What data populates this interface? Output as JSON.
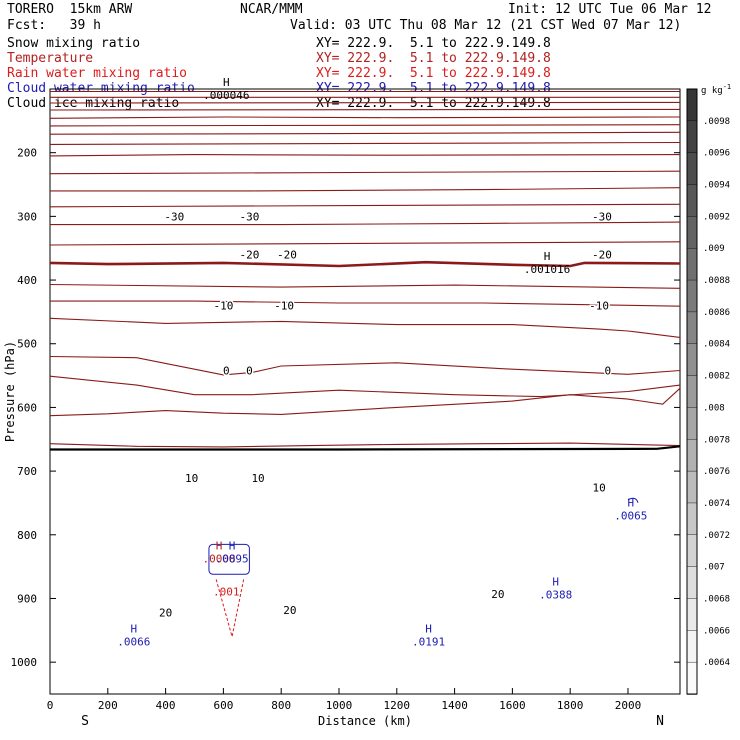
{
  "header": {
    "model": "TORERO  15km ARW",
    "org": "NCAR/MMM",
    "init": "Init: 12 UTC Tue 06 Mar 12",
    "fcst": "Fcst:   39 h",
    "valid": "Valid: 03 UTC Thu 08 Mar 12 (21 CST Wed 07 Mar 12)",
    "fields": [
      {
        "name": "Snow mixing ratio",
        "xy": "XY= 222.9.  5.1 to 222.9.149.8",
        "color": "#000000"
      },
      {
        "name": "Temperature",
        "xy": "XY= 222.9.  5.1 to 222.9.149.8",
        "color": "#b22222"
      },
      {
        "name": "Rain water mixing ratio",
        "xy": "XY= 222.9.  5.1 to 222.9.149.8",
        "color": "#dd1c1c"
      },
      {
        "name": "Cloud water mixing ratio",
        "xy": "XY= 222.9.  5.1 to 222.9.149.8",
        "color": "#1c1cb4"
      },
      {
        "name": "Cloud ice mixing ratio",
        "xy": "XY= 222.9.  5.1 to 222.9.149.8",
        "color": "#000000"
      }
    ]
  },
  "chart_data": {
    "type": "line",
    "title": "",
    "xlabel": "Distance (km)",
    "ylabel": "Pressure (hPa)",
    "xlim": [
      0,
      2180
    ],
    "ylim": [
      1050,
      100
    ],
    "x_ticks": [
      0,
      200,
      400,
      600,
      800,
      1000,
      1200,
      1400,
      1600,
      1800,
      2000
    ],
    "y_ticks": [
      200,
      300,
      400,
      500,
      600,
      700,
      800,
      900,
      1000
    ],
    "end_labels": {
      "left": "S",
      "right": "N"
    },
    "temperature_contours": [
      {
        "level": null,
        "points": [
          [
            0,
            104
          ],
          [
            2180,
            104
          ]
        ]
      },
      {
        "level": null,
        "points": [
          [
            0,
            113
          ],
          [
            2180,
            113
          ]
        ]
      },
      {
        "level": null,
        "points": [
          [
            0,
            122
          ],
          [
            2180,
            121
          ]
        ]
      },
      {
        "level": null,
        "points": [
          [
            0,
            133
          ],
          [
            2180,
            132
          ]
        ]
      },
      {
        "level": null,
        "points": [
          [
            0,
            146
          ],
          [
            600,
            144
          ],
          [
            1200,
            145
          ],
          [
            2180,
            144
          ]
        ]
      },
      {
        "level": null,
        "points": [
          [
            0,
            158
          ],
          [
            2180,
            156
          ]
        ]
      },
      {
        "level": null,
        "points": [
          [
            0,
            171
          ],
          [
            1000,
            170
          ],
          [
            2180,
            168
          ]
        ]
      },
      {
        "level": null,
        "points": [
          [
            0,
            187
          ],
          [
            2180,
            184
          ]
        ]
      },
      {
        "level": -30,
        "points": [
          [
            0,
            205
          ],
          [
            500,
            203
          ],
          [
            1200,
            204
          ],
          [
            2180,
            203
          ]
        ]
      },
      {
        "level": null,
        "points": [
          [
            0,
            233
          ],
          [
            2180,
            229
          ]
        ]
      },
      {
        "level": -20,
        "points": [
          [
            0,
            260
          ],
          [
            700,
            260
          ],
          [
            1500,
            258
          ],
          [
            2180,
            255
          ]
        ]
      },
      {
        "level": null,
        "points": [
          [
            0,
            285
          ],
          [
            2180,
            281
          ]
        ]
      },
      {
        "level": -10,
        "points": [
          [
            0,
            313
          ],
          [
            800,
            313
          ],
          [
            1500,
            311
          ],
          [
            2180,
            309
          ]
        ]
      },
      {
        "level": null,
        "points": [
          [
            0,
            345
          ],
          [
            2180,
            340
          ]
        ]
      },
      {
        "level": 0,
        "bold": true,
        "points": [
          [
            0,
            373
          ],
          [
            200,
            375
          ],
          [
            600,
            373
          ],
          [
            1000,
            378
          ],
          [
            1300,
            372
          ],
          [
            1600,
            376
          ],
          [
            1800,
            378
          ],
          [
            1850,
            373
          ],
          [
            2180,
            374
          ]
        ]
      },
      {
        "level": null,
        "points": [
          [
            0,
            407
          ],
          [
            800,
            411
          ],
          [
            1400,
            408
          ],
          [
            2180,
            413
          ]
        ]
      },
      {
        "level": null,
        "points": [
          [
            0,
            433
          ],
          [
            500,
            433
          ],
          [
            1000,
            436
          ],
          [
            1500,
            436
          ],
          [
            2180,
            441
          ]
        ]
      },
      {
        "level": 10,
        "points": [
          [
            0,
            460
          ],
          [
            400,
            468
          ],
          [
            800,
            465
          ],
          [
            1200,
            470
          ],
          [
            1600,
            470
          ],
          [
            1900,
            477
          ],
          [
            2000,
            480
          ],
          [
            2180,
            490
          ]
        ]
      },
      {
        "level": null,
        "points": [
          [
            0,
            520
          ],
          [
            300,
            522
          ],
          [
            500,
            540
          ],
          [
            600,
            549
          ],
          [
            700,
            545
          ],
          [
            800,
            535
          ],
          [
            1200,
            530
          ],
          [
            1600,
            540
          ],
          [
            2000,
            548
          ],
          [
            2180,
            542
          ]
        ]
      },
      {
        "level": null,
        "points": [
          [
            0,
            551
          ],
          [
            300,
            565
          ],
          [
            500,
            580
          ],
          [
            700,
            580
          ],
          [
            1000,
            573
          ],
          [
            1400,
            580
          ],
          [
            1700,
            583
          ],
          [
            2000,
            575
          ],
          [
            2180,
            565
          ]
        ]
      },
      {
        "level": 20,
        "points": [
          [
            0,
            613
          ],
          [
            200,
            610
          ],
          [
            400,
            605
          ],
          [
            600,
            609
          ],
          [
            800,
            611
          ],
          [
            1200,
            600
          ],
          [
            1600,
            590
          ],
          [
            1800,
            580
          ],
          [
            2000,
            587
          ],
          [
            2120,
            595
          ],
          [
            2180,
            570
          ]
        ]
      },
      {
        "level": null,
        "points": [
          [
            0,
            657
          ],
          [
            300,
            661
          ],
          [
            600,
            662
          ],
          [
            900,
            660
          ],
          [
            1200,
            658
          ],
          [
            1500,
            657
          ],
          [
            1800,
            656
          ],
          [
            2180,
            660
          ]
        ]
      }
    ],
    "surface": {
      "points": [
        [
          0,
          666
        ],
        [
          1000,
          666
        ],
        [
          2100,
          665
        ],
        [
          2180,
          661
        ]
      ]
    },
    "contour_labels": [
      {
        "x": 430,
        "p": 300,
        "text": "-30"
      },
      {
        "x": 690,
        "p": 300,
        "text": "-30"
      },
      {
        "x": 1910,
        "p": 300,
        "text": "-30"
      },
      {
        "x": 690,
        "p": 360,
        "text": "-20"
      },
      {
        "x": 820,
        "p": 360,
        "text": "-20"
      },
      {
        "x": 1910,
        "p": 360,
        "text": "-20"
      },
      {
        "x": 600,
        "p": 440,
        "text": "-10"
      },
      {
        "x": 810,
        "p": 440,
        "text": "-10"
      },
      {
        "x": 1900,
        "p": 440,
        "text": "-10"
      },
      {
        "x": 610,
        "p": 542,
        "text": "0"
      },
      {
        "x": 690,
        "p": 542,
        "text": "0"
      },
      {
        "x": 1930,
        "p": 542,
        "text": "0"
      },
      {
        "x": 490,
        "p": 711,
        "text": "10"
      },
      {
        "x": 720,
        "p": 711,
        "text": "10"
      },
      {
        "x": 1900,
        "p": 726,
        "text": "10"
      },
      {
        "x": 400,
        "p": 922,
        "text": "20"
      },
      {
        "x": 830,
        "p": 918,
        "text": "20"
      },
      {
        "x": 1550,
        "p": 893,
        "text": "20"
      }
    ],
    "extrema_labels": [
      {
        "x": 610,
        "p": 100,
        "mark": "H",
        "value": ".000046",
        "color": "#000000"
      },
      {
        "x": 1720,
        "p": 373,
        "mark": "H",
        "value": ".001016",
        "color": "#000000"
      },
      {
        "x": 2010,
        "p": 760,
        "mark": "H",
        "value": ".0065",
        "color": "#1c1cb4"
      },
      {
        "x": 1750,
        "p": 884,
        "mark": "H",
        "value": ".0388",
        "color": "#1c1cb4"
      },
      {
        "x": 290,
        "p": 958,
        "mark": "H",
        "value": ".0066",
        "color": "#1c1cb4"
      },
      {
        "x": 1310,
        "p": 958,
        "mark": "H",
        "value": ".0191",
        "color": "#1c1cb4"
      },
      {
        "x": 585,
        "p": 828,
        "mark": "H",
        "value": ".0008",
        "color": "#b22222"
      },
      {
        "x": 630,
        "p": 828,
        "mark": "H",
        "value": ".0095",
        "color": "#1c1cb4"
      },
      {
        "x": 610,
        "p": 880,
        "mark": "",
        "value": ".001",
        "color": "#dd1c1c"
      }
    ],
    "colorbar": {
      "unit": "g kg-1",
      "unit_base": "g kg",
      "unit_exp": "-1",
      "ticks": [
        ".0098",
        ".0096",
        ".0094",
        ".0092",
        ".009",
        ".0088",
        ".0086",
        ".0084",
        ".0082",
        ".008",
        ".0078",
        ".0076",
        ".0074",
        ".0072",
        ".007",
        ".0068",
        ".0066",
        ".0064"
      ]
    }
  }
}
